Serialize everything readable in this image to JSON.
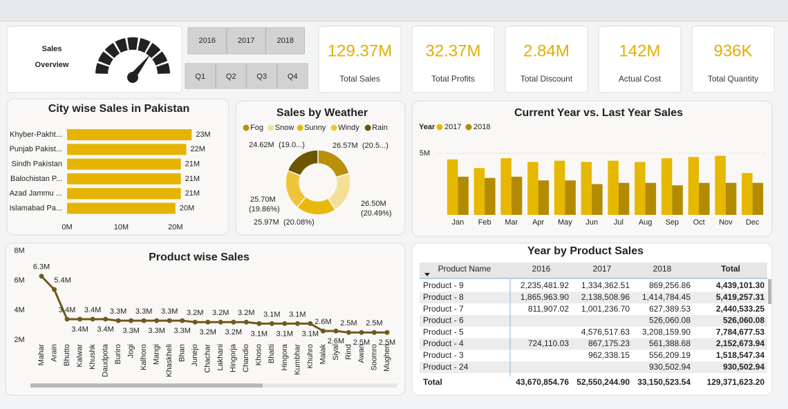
{
  "header": {
    "title": [
      "Sales",
      "Overview"
    ]
  },
  "slicers": {
    "years": [
      "2016",
      "2017",
      "2018"
    ],
    "quarters": [
      "Q1",
      "Q2",
      "Q3",
      "Q4"
    ]
  },
  "kpis": [
    {
      "value": "129.37M",
      "label": "Total Sales"
    },
    {
      "value": "32.37M",
      "label": "Total Profits"
    },
    {
      "value": "2.84M",
      "label": "Total Discount"
    },
    {
      "value": "142M",
      "label": "Actual Cost"
    },
    {
      "value": "936K",
      "label": "Total Quantity"
    }
  ],
  "chart_data": [
    {
      "type": "bar",
      "orientation": "horizontal",
      "title": "City wise Sales in Pakistan",
      "categories": [
        "Khyber-Pakht...",
        "Punjab Pakist...",
        "Sindh Pakistan",
        "Balochistan P...",
        "Azad Jammu ...",
        "Islamabad Pa..."
      ],
      "values": [
        23,
        22,
        21,
        21,
        21,
        20
      ],
      "value_labels": [
        "23M",
        "22M",
        "21M",
        "21M",
        "21M",
        "20M"
      ],
      "color": "#e6b400",
      "xlim": [
        0,
        25
      ],
      "xticks": [
        {
          "value": 0,
          "label": "0M"
        },
        {
          "value": 10,
          "label": "10M"
        },
        {
          "value": 20,
          "label": "20M"
        }
      ]
    },
    {
      "type": "donut",
      "title": "Sales by Weather",
      "categories": [
        "Fog",
        "Snow",
        "Sunny",
        "Windy",
        "Rain"
      ],
      "values": [
        26.57,
        26.5,
        25.97,
        25.7,
        24.62
      ],
      "value_labels": [
        "26.57M",
        "26.50M",
        "25.97M",
        "25.70M",
        "24.62M"
      ],
      "percent_labels": [
        "(20.5...)",
        "(20.49%)",
        "(20.08%)",
        "(19.86%)",
        "(19.0...)"
      ],
      "colors": [
        "#b8900a",
        "#f5df98",
        "#e8b90c",
        "#f0c43a",
        "#6e5500"
      ]
    },
    {
      "type": "grouped_bar",
      "title": "Current Year vs. Last Year Sales",
      "legend_title": "Year",
      "categories": [
        "Jan",
        "Feb",
        "Mar",
        "Apr",
        "May",
        "Jun",
        "Jul",
        "Aug",
        "Sep",
        "Oct",
        "Nov",
        "Dec"
      ],
      "series": [
        {
          "name": "2017",
          "color": "#e6b800",
          "values": [
            4.5,
            3.8,
            4.6,
            4.3,
            4.4,
            4.3,
            4.4,
            4.3,
            4.6,
            4.7,
            4.8,
            3.4
          ]
        },
        {
          "name": "2018",
          "color": "#b38b00",
          "values": [
            3.1,
            3.0,
            3.1,
            2.8,
            2.8,
            2.5,
            2.6,
            2.6,
            2.4,
            2.6,
            2.6,
            2.6
          ]
        }
      ],
      "ylim": [
        0,
        5.5
      ],
      "yticks": [
        {
          "value": 5,
          "label": "5M"
        }
      ],
      "grid": true
    },
    {
      "type": "line",
      "title": "Product wise Sales",
      "categories": [
        "Mahar",
        "Arain",
        "Bhutto",
        "Kalwar",
        "Khushk",
        "Daudpota",
        "Buriro",
        "Jogi",
        "Kalhoro",
        "Mangi",
        "Khaskheli",
        "Bhan",
        "Junejo",
        "Chachar",
        "Lakhani",
        "Hingorja",
        "Chandio",
        "Khoso",
        "Bhatti",
        "Hingora",
        "Kumbhar",
        "Khuhro",
        "Malak",
        "Siyal",
        "Rind",
        "Awan",
        "Soomro",
        "Mugheri"
      ],
      "values": [
        6.3,
        5.4,
        3.4,
        3.4,
        3.4,
        3.4,
        3.3,
        3.3,
        3.3,
        3.3,
        3.3,
        3.3,
        3.2,
        3.2,
        3.2,
        3.2,
        3.2,
        3.1,
        3.1,
        3.1,
        3.1,
        3.1,
        2.6,
        2.6,
        2.5,
        2.5,
        2.5,
        2.5
      ],
      "value_labels": [
        "6.3M",
        "5.4M",
        "3.4M",
        "3.4M",
        "3.4M",
        "3.4M",
        "3.3M",
        "3.3M",
        "3.3M",
        "3.3M",
        "3.3M",
        "3.3M",
        "3.2M",
        "3.2M",
        "3.2M",
        "3.2M",
        "3.2M",
        "3.1M",
        "3.1M",
        "3.1M",
        "3.1M",
        "3.1M",
        "2.6M",
        "2.6M",
        "2.5M",
        "2.5M",
        "2.5M",
        "2.5M"
      ],
      "color": "#6f5a1c",
      "ylim": [
        1.3,
        8.2
      ],
      "yticks": [
        {
          "value": 2,
          "label": "2M"
        },
        {
          "value": 4,
          "label": "4M"
        },
        {
          "value": 6,
          "label": "6M"
        },
        {
          "value": 8,
          "label": "8M"
        }
      ]
    }
  ],
  "table": {
    "title": "Year by Product Sales",
    "columns": [
      "Product Name",
      "2016",
      "2017",
      "2018",
      "Total"
    ],
    "rows": [
      [
        "Product - 9",
        "2,235,481.92",
        "1,334,362.51",
        "869,256.86",
        "4,439,101.30"
      ],
      [
        "Product - 8",
        "1,865,963.90",
        "2,138,508.96",
        "1,414,784.45",
        "5,419,257.31"
      ],
      [
        "Product - 7",
        "811,907.02",
        "1,001,236.70",
        "627,389.53",
        "2,440,533.25"
      ],
      [
        "Product - 6",
        null,
        null,
        "526,060.08",
        "526,060.08"
      ],
      [
        "Product - 5",
        null,
        "4,576,517.63",
        "3,208,159.90",
        "7,784,677.53"
      ],
      [
        "Product - 4",
        "724,110.03",
        "867,175.23",
        "561,388.68",
        "2,152,673.94"
      ],
      [
        "Product - 3",
        null,
        "962,338.15",
        "556,209.19",
        "1,518,547.34"
      ],
      [
        "Product - 24",
        null,
        null,
        "930,502.94",
        "930,502.94"
      ]
    ],
    "total": [
      "Total",
      "43,670,854.76",
      "52,550,244.90",
      "33,150,523.54",
      "129,371,623.20"
    ]
  }
}
